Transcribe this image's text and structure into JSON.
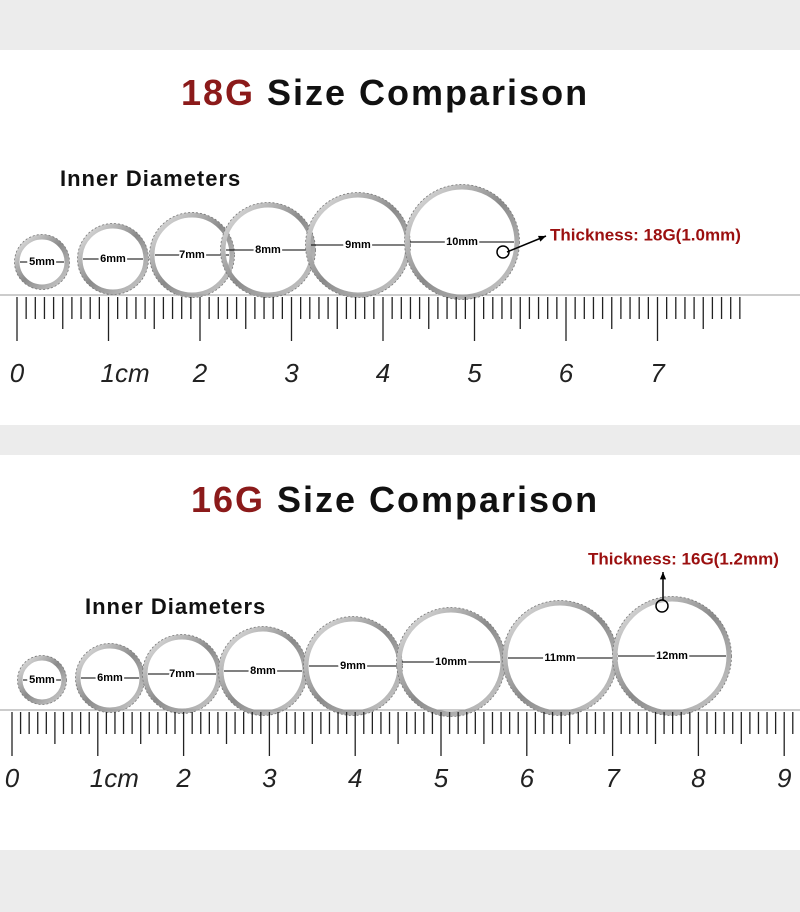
{
  "panels": [
    {
      "title_gauge": "18G",
      "title_rest": "Size Comparison",
      "subtitle": "Inner Diameters",
      "rings": [
        "5mm",
        "6mm",
        "7mm",
        "8mm",
        "9mm",
        "10mm"
      ],
      "thickness": "Thickness: 18G(1.0mm)",
      "ruler_labels": [
        "0",
        "1cm",
        "2",
        "3",
        "4",
        "5",
        "6",
        "7"
      ]
    },
    {
      "title_gauge": "16G",
      "title_rest": "Size Comparison",
      "subtitle": "Inner Diameters",
      "rings": [
        "5mm",
        "6mm",
        "7mm",
        "8mm",
        "9mm",
        "10mm",
        "11mm",
        "12mm"
      ],
      "thickness": "Thickness: 16G(1.2mm)",
      "ruler_labels": [
        "0",
        "1cm",
        "2",
        "3",
        "4",
        "5",
        "6",
        "7",
        "8",
        "9"
      ]
    }
  ]
}
